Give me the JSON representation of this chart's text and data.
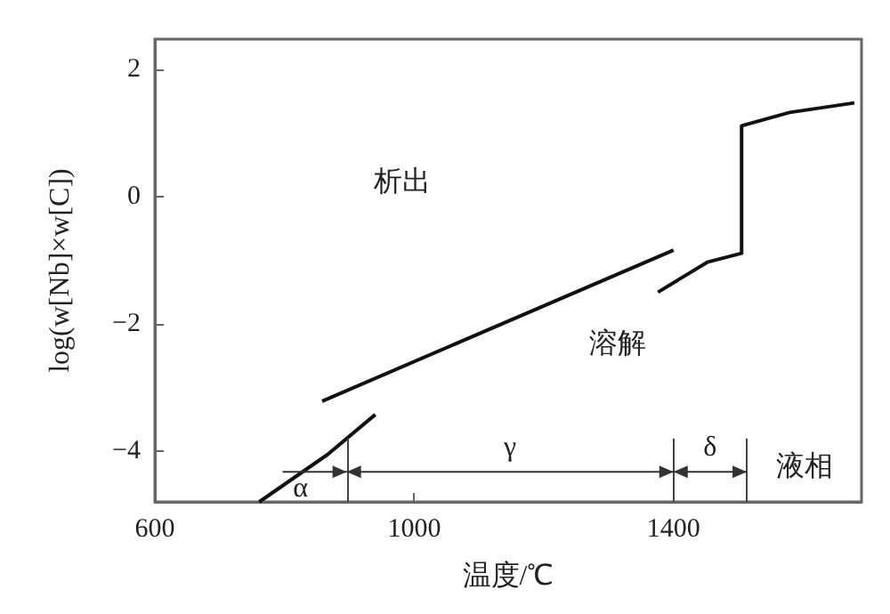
{
  "chart_data": {
    "type": "line",
    "xlabel": "温度/℃",
    "ylabel": "log(w[Nb]×w[C])",
    "xlim": [
      600,
      1690
    ],
    "xticks": [
      600,
      1000,
      1400
    ],
    "ylim": [
      -4.79,
      2.47
    ],
    "yticks": [
      -4,
      -2,
      0,
      2
    ],
    "grid": false,
    "series": [
      {
        "color": "#111111",
        "x": [
          761,
          866,
          940
        ],
        "values": [
          -4.79,
          -4.05,
          -3.42
        ]
      },
      {
        "color": "#111111",
        "x": [
          858,
          1400
        ],
        "values": [
          -3.21,
          -0.84
        ]
      },
      {
        "color": "#111111",
        "x": [
          1376,
          1452,
          1505,
          1505,
          1579,
          1679
        ],
        "values": [
          -1.5,
          -1.03,
          -0.89,
          1.11,
          1.32,
          1.47
        ]
      }
    ],
    "ref_lines": [
      {
        "axis": "x",
        "value": 896,
        "color": "#444444"
      },
      {
        "axis": "x",
        "value": 1400,
        "color": "#444444"
      },
      {
        "axis": "x",
        "value": 1513,
        "color": "#444444"
      }
    ],
    "annotations": [
      "析出",
      "溶解",
      "α",
      "γ",
      "δ",
      "液相"
    ]
  }
}
